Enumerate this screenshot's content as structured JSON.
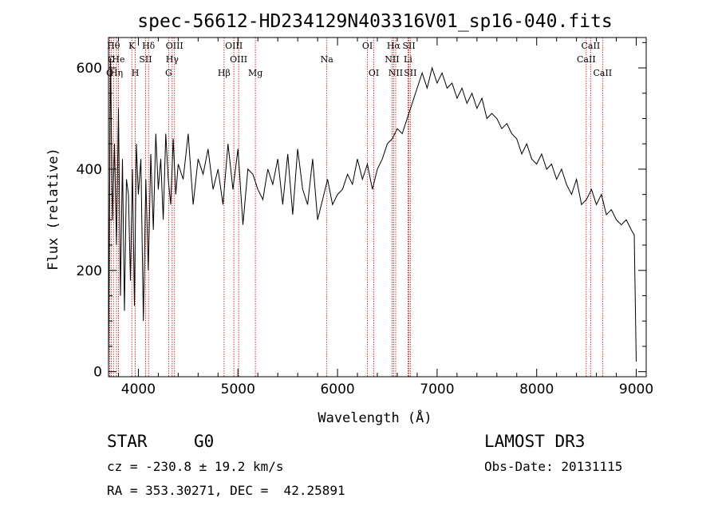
{
  "chart_data": {
    "type": "line",
    "title": "spec-56612-HD234129N403316V01_sp16-040.fits",
    "xlabel": "Wavelength (Å)",
    "ylabel": "Flux (relative)",
    "xlim": [
      3700,
      9100
    ],
    "ylim": [
      -10,
      660
    ],
    "xticks": [
      4000,
      5000,
      6000,
      7000,
      8000,
      9000
    ],
    "yticks": [
      0,
      200,
      400,
      600
    ],
    "series": [
      {
        "name": "flux",
        "x": [
          3700,
          3720,
          3740,
          3760,
          3780,
          3800,
          3820,
          3840,
          3860,
          3880,
          3900,
          3920,
          3940,
          3960,
          3980,
          4000,
          4025,
          4050,
          4075,
          4100,
          4125,
          4150,
          4175,
          4200,
          4225,
          4250,
          4275,
          4300,
          4325,
          4350,
          4375,
          4400,
          4450,
          4500,
          4550,
          4600,
          4650,
          4700,
          4750,
          4800,
          4850,
          4900,
          4950,
          5000,
          5050,
          5100,
          5150,
          5200,
          5250,
          5300,
          5350,
          5400,
          5450,
          5500,
          5550,
          5600,
          5650,
          5700,
          5750,
          5800,
          5850,
          5900,
          5950,
          6000,
          6050,
          6100,
          6150,
          6200,
          6250,
          6300,
          6350,
          6400,
          6450,
          6500,
          6550,
          6600,
          6650,
          6700,
          6750,
          6800,
          6850,
          6900,
          6950,
          7000,
          7050,
          7100,
          7150,
          7200,
          7250,
          7300,
          7350,
          7400,
          7450,
          7500,
          7550,
          7600,
          7650,
          7700,
          7750,
          7800,
          7850,
          7900,
          7950,
          8000,
          8050,
          8100,
          8150,
          8200,
          8250,
          8300,
          8350,
          8400,
          8450,
          8500,
          8550,
          8600,
          8650,
          8700,
          8750,
          8800,
          8850,
          8900,
          8950,
          8980,
          9000
        ],
        "values": [
          10,
          620,
          300,
          450,
          250,
          520,
          150,
          420,
          120,
          380,
          350,
          180,
          400,
          130,
          450,
          350,
          420,
          100,
          380,
          200,
          430,
          280,
          470,
          360,
          420,
          300,
          470,
          380,
          330,
          460,
          350,
          410,
          380,
          470,
          330,
          420,
          390,
          440,
          360,
          400,
          330,
          450,
          360,
          440,
          290,
          400,
          390,
          360,
          340,
          400,
          370,
          420,
          330,
          430,
          310,
          440,
          360,
          330,
          420,
          300,
          340,
          380,
          330,
          350,
          360,
          390,
          370,
          420,
          380,
          410,
          360,
          400,
          420,
          450,
          460,
          480,
          470,
          500,
          530,
          560,
          590,
          560,
          600,
          570,
          590,
          560,
          570,
          540,
          560,
          530,
          550,
          520,
          540,
          500,
          510,
          500,
          480,
          490,
          470,
          460,
          430,
          450,
          420,
          410,
          430,
          400,
          410,
          380,
          400,
          370,
          350,
          380,
          330,
          340,
          360,
          330,
          350,
          310,
          320,
          300,
          290,
          300,
          280,
          270,
          20
        ]
      }
    ],
    "lines": [
      {
        "label": "Hθ",
        "x": 3750,
        "row": 1
      },
      {
        "label": "O",
        "x": 3727,
        "row": 2
      },
      {
        "label": "He",
        "x": 3800,
        "row": 2
      },
      {
        "label": "O",
        "x": 3712,
        "row": 3
      },
      {
        "label": "Hη",
        "x": 3780,
        "row": 3
      },
      {
        "label": "K",
        "x": 3934,
        "row": 1
      },
      {
        "label": "H",
        "x": 3969,
        "row": 3
      },
      {
        "label": "SII",
        "x": 4072,
        "row": 2
      },
      {
        "label": "Hδ",
        "x": 4102,
        "row": 1
      },
      {
        "label": "OIII",
        "x": 4363,
        "row": 1
      },
      {
        "label": "Hγ",
        "x": 4340,
        "row": 2
      },
      {
        "label": "G",
        "x": 4304,
        "row": 3
      },
      {
        "label": "Hβ",
        "x": 4861,
        "row": 3
      },
      {
        "label": "OIII",
        "x": 4959,
        "row": 1
      },
      {
        "label": "OIII",
        "x": 5007,
        "row": 2
      },
      {
        "label": "Mg",
        "x": 5175,
        "row": 3
      },
      {
        "label": "Na",
        "x": 5893,
        "row": 2
      },
      {
        "label": "OI",
        "x": 6300,
        "row": 1
      },
      {
        "label": "OI",
        "x": 6364,
        "row": 3
      },
      {
        "label": "Hα",
        "x": 6563,
        "row": 1
      },
      {
        "label": "NII",
        "x": 6548,
        "row": 2
      },
      {
        "label": "NII",
        "x": 6584,
        "row": 3
      },
      {
        "label": "SII",
        "x": 6717,
        "row": 1
      },
      {
        "label": "Li",
        "x": 6708,
        "row": 2
      },
      {
        "label": "SII",
        "x": 6731,
        "row": 3
      },
      {
        "label": "CaII",
        "x": 8542,
        "row": 1
      },
      {
        "label": "CaII",
        "x": 8498,
        "row": 2
      },
      {
        "label": "CaII",
        "x": 8662,
        "row": 3
      }
    ]
  },
  "info": {
    "class_label": "STAR",
    "subclass_label": "G0",
    "survey": "LAMOST DR3",
    "redshift_line": "cz = -230.8 ± 19.2 km/s",
    "obs_date": "Obs-Date: 20131115",
    "coords": "RA = 353.30271, DEC =  42.25891"
  },
  "colors": {
    "line_marker": "#cc0000",
    "spectrum": "#000000"
  }
}
